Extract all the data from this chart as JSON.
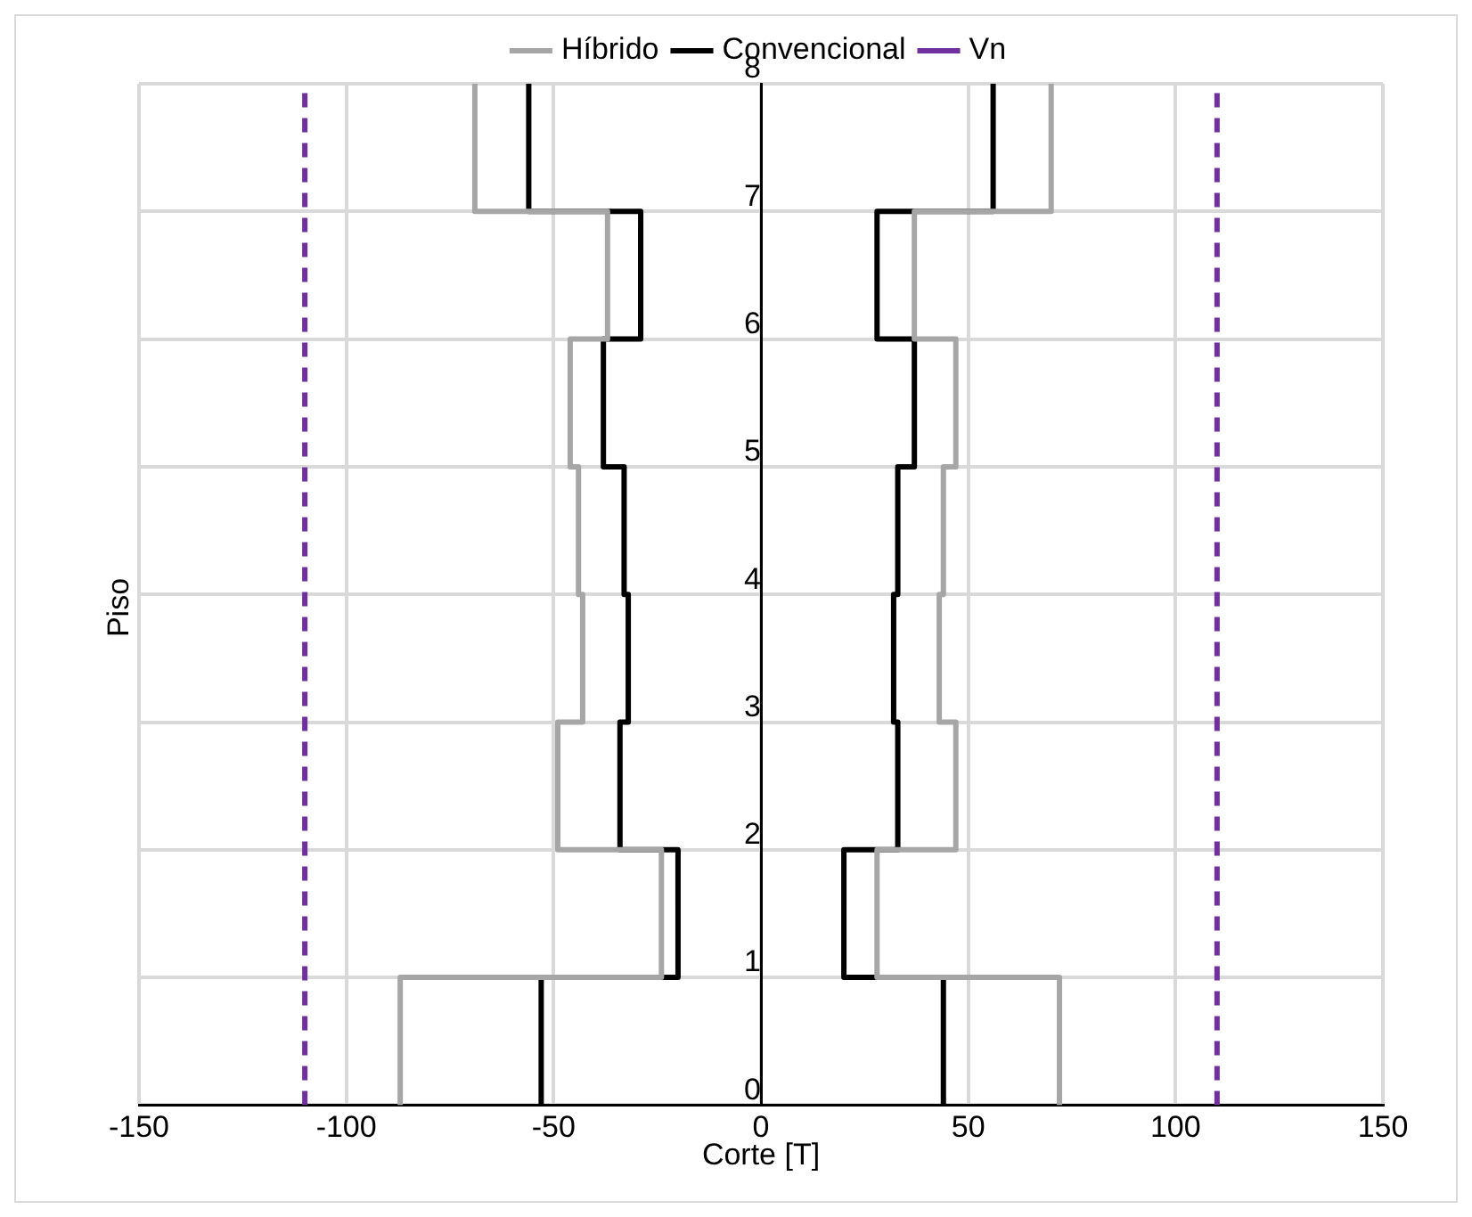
{
  "chart_data": {
    "type": "line",
    "xlabel": "Corte [T]",
    "ylabel": "Piso",
    "legend": "top",
    "grid": true,
    "marker": "none",
    "xlim": [
      -150,
      150
    ],
    "xticks": [
      -150,
      -100,
      -50,
      0,
      50,
      100,
      150
    ],
    "ylim": [
      0,
      8
    ],
    "yticks": [
      0,
      1,
      2,
      3,
      4,
      5,
      6,
      7,
      8
    ],
    "series": [
      {
        "name": "Híbrido",
        "color": "#a6a6a6",
        "line_style": "solid",
        "x": [
          -87,
          -87,
          -24,
          -24,
          -49,
          -49,
          -43,
          -43,
          -44,
          -44,
          -46,
          -46,
          -37,
          -37,
          -69,
          -69
        ],
        "values": [
          0,
          1,
          1,
          2,
          2,
          3,
          3,
          4,
          4,
          5,
          5,
          6,
          6,
          7,
          7,
          8
        ]
      },
      {
        "color": "#a6a6a6",
        "line_style": "solid",
        "x": [
          72,
          72,
          28,
          28,
          47,
          47,
          43,
          43,
          44,
          44,
          47,
          47,
          37,
          37,
          70,
          70
        ],
        "values": [
          0,
          1,
          1,
          2,
          2,
          3,
          3,
          4,
          4,
          5,
          5,
          6,
          6,
          7,
          7,
          8
        ]
      },
      {
        "name": "Convencional",
        "color": "#000000",
        "line_style": "solid",
        "x": [
          -53,
          -53,
          -20,
          -20,
          -34,
          -34,
          -32,
          -32,
          -33,
          -33,
          -38,
          -38,
          -29,
          -29,
          -56,
          -56
        ],
        "values": [
          0,
          1,
          1,
          2,
          2,
          3,
          3,
          4,
          4,
          5,
          5,
          6,
          6,
          7,
          7,
          8
        ]
      },
      {
        "color": "#000000",
        "line_style": "solid",
        "x": [
          44,
          44,
          20,
          20,
          33,
          33,
          32,
          32,
          33,
          33,
          37,
          37,
          28,
          28,
          56,
          56
        ],
        "values": [
          0,
          1,
          1,
          2,
          2,
          3,
          3,
          4,
          4,
          5,
          5,
          6,
          6,
          7,
          7,
          8
        ]
      },
      {
        "name": "Vn",
        "color": "#7030a0",
        "line_style": "dashed",
        "x": [
          -110,
          -110
        ],
        "values": [
          0,
          8
        ]
      },
      {
        "color": "#7030a0",
        "line_style": "dashed",
        "x": [
          110,
          110
        ],
        "values": [
          0,
          8
        ]
      }
    ]
  }
}
